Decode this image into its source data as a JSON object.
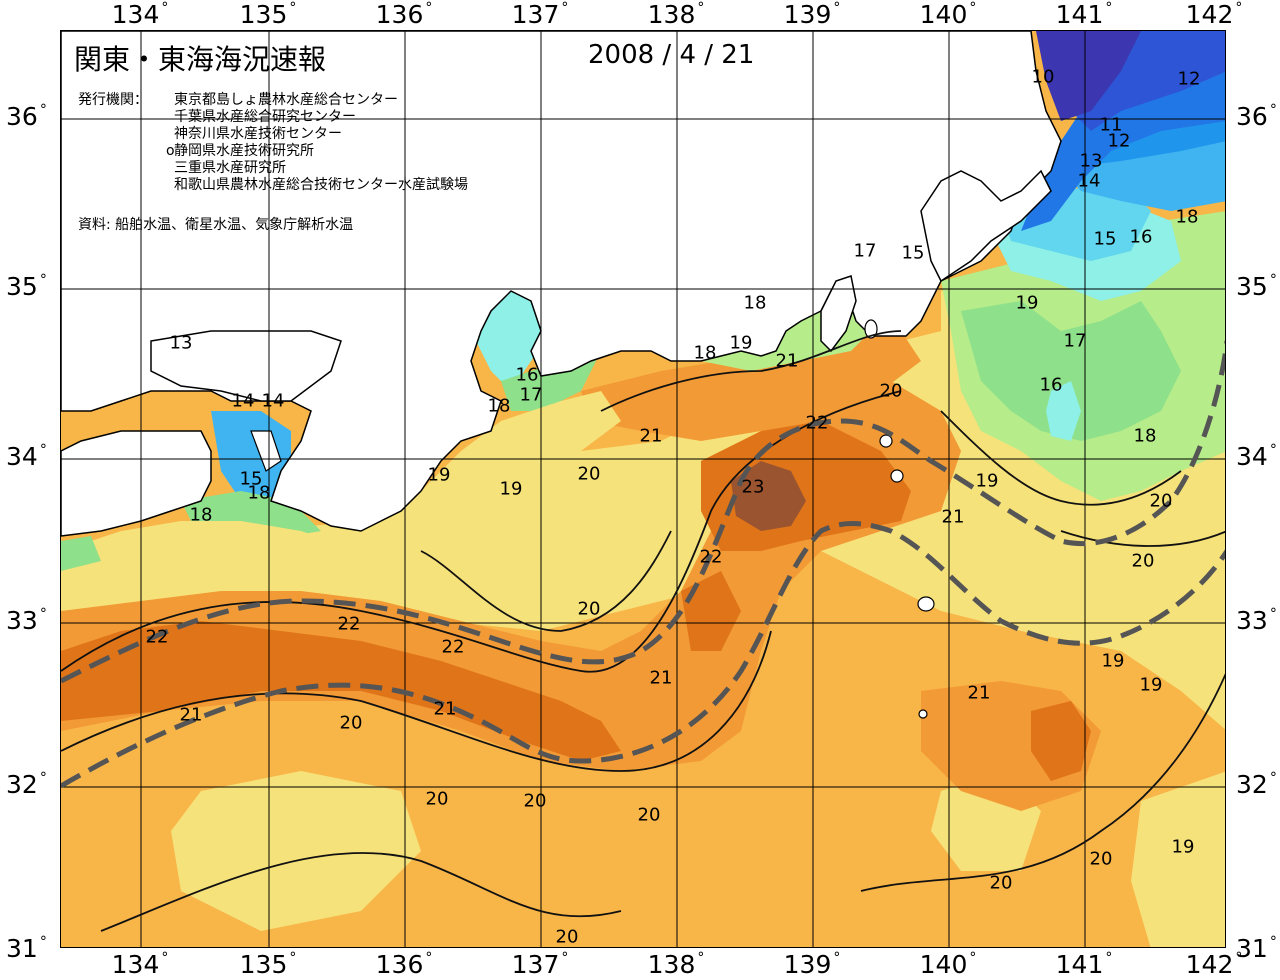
{
  "title": "関東・東海海況速報",
  "date": "2008 / 4 / 21",
  "agencies_label": "発行機関：",
  "agencies": [
    "東京都島しょ農林水産総合センター",
    "千葉県水産総合研究センター",
    "神奈川県水産技術センター",
    "静岡県水産技術研究所",
    "三重県水産研究所",
    "和歌山県農林水産総合技術センター水産試験場"
  ],
  "agency_marker": "o",
  "source": "資料: 船舶水温、衛星水温、気象庁解析水温",
  "axes": {
    "lon_labels": [
      "134",
      "135",
      "136",
      "137",
      "138",
      "139",
      "140",
      "141",
      "142"
    ],
    "lat_labels": [
      "36",
      "35",
      "34",
      "33",
      "32",
      "31"
    ],
    "degree_symbol": "°"
  },
  "colors": {
    "c10": "#3c36b0",
    "c11": "#2d55d6",
    "c12": "#2277e6",
    "c13": "#1f96ec",
    "c14": "#3fb4f0",
    "c15": "#62d6ee",
    "c16": "#8ef0e6",
    "c17": "#8ee08a",
    "c18": "#b6ec8a",
    "c19": "#f6e27a",
    "c20": "#f8b548",
    "c21": "#f29a35",
    "c22": "#e07418",
    "c23": "#9a5430",
    "land": "#ffffff",
    "kuroshio_axis": "#555555"
  },
  "contour_labels": [
    {
      "text": "10"
    },
    {
      "text": "12"
    },
    {
      "text": "11"
    },
    {
      "text": "12"
    },
    {
      "text": "13"
    },
    {
      "text": "14"
    },
    {
      "text": "15"
    },
    {
      "text": "16"
    },
    {
      "text": "18"
    },
    {
      "text": "17"
    },
    {
      "text": "15"
    },
    {
      "text": "19"
    },
    {
      "text": "17"
    },
    {
      "text": "16"
    },
    {
      "text": "18"
    },
    {
      "text": "18"
    },
    {
      "text": "19"
    },
    {
      "text": "18"
    },
    {
      "text": "21"
    },
    {
      "text": "20"
    },
    {
      "text": "22"
    },
    {
      "text": "23"
    },
    {
      "text": "21"
    },
    {
      "text": "19"
    },
    {
      "text": "19"
    },
    {
      "text": "20"
    },
    {
      "text": "16"
    },
    {
      "text": "17"
    },
    {
      "text": "18"
    },
    {
      "text": "13"
    },
    {
      "text": "14"
    },
    {
      "text": "14"
    },
    {
      "text": "15"
    },
    {
      "text": "18"
    },
    {
      "text": "18"
    },
    {
      "text": "22"
    },
    {
      "text": "22"
    },
    {
      "text": "22"
    },
    {
      "text": "21"
    },
    {
      "text": "20"
    },
    {
      "text": "21"
    },
    {
      "text": "21"
    },
    {
      "text": "20"
    },
    {
      "text": "20"
    },
    {
      "text": "20"
    },
    {
      "text": "20"
    },
    {
      "text": "20"
    },
    {
      "text": "20"
    },
    {
      "text": "20"
    },
    {
      "text": "21"
    },
    {
      "text": "19"
    },
    {
      "text": "19"
    },
    {
      "text": "20"
    },
    {
      "text": "19"
    },
    {
      "text": "21"
    },
    {
      "text": "20"
    },
    {
      "text": "19"
    },
    {
      "text": "22"
    }
  ]
}
